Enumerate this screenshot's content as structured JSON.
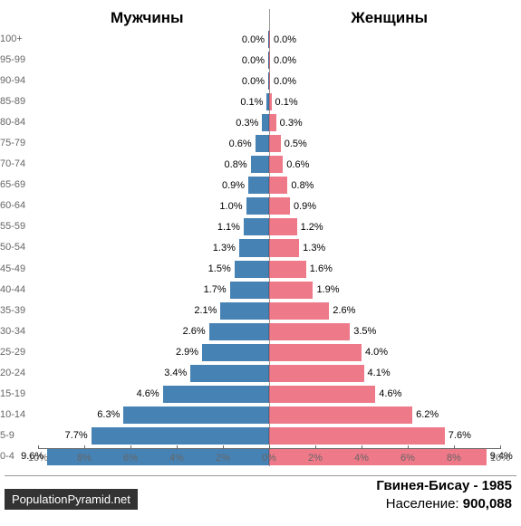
{
  "chart": {
    "type": "population-pyramid",
    "male_label": "Мужчины",
    "female_label": "Женщины",
    "male_color": "#4682b4",
    "female_color": "#ee7989",
    "background_color": "#ffffff",
    "axis_color": "#666666",
    "label_fontsize": 17,
    "age_label_fontsize": 11,
    "percent_fontsize": 11,
    "x_max_percent": 10,
    "x_ticks_left": [
      "10%",
      "8%",
      "6%",
      "4%",
      "2%",
      "0%"
    ],
    "x_ticks_right": [
      "2%",
      "4%",
      "6%",
      "8%",
      "10%"
    ],
    "age_groups": [
      {
        "label": "100+",
        "male": 0.0,
        "female": 0.0
      },
      {
        "label": "95-99",
        "male": 0.0,
        "female": 0.0
      },
      {
        "label": "90-94",
        "male": 0.0,
        "female": 0.0
      },
      {
        "label": "85-89",
        "male": 0.1,
        "female": 0.1
      },
      {
        "label": "80-84",
        "male": 0.3,
        "female": 0.3
      },
      {
        "label": "75-79",
        "male": 0.6,
        "female": 0.5
      },
      {
        "label": "70-74",
        "male": 0.8,
        "female": 0.6
      },
      {
        "label": "65-69",
        "male": 0.9,
        "female": 0.8
      },
      {
        "label": "60-64",
        "male": 1.0,
        "female": 0.9
      },
      {
        "label": "55-59",
        "male": 1.1,
        "female": 1.2
      },
      {
        "label": "50-54",
        "male": 1.3,
        "female": 1.3
      },
      {
        "label": "45-49",
        "male": 1.5,
        "female": 1.6
      },
      {
        "label": "40-44",
        "male": 1.7,
        "female": 1.9
      },
      {
        "label": "35-39",
        "male": 2.1,
        "female": 2.6
      },
      {
        "label": "30-34",
        "male": 2.6,
        "female": 3.5
      },
      {
        "label": "25-29",
        "male": 2.9,
        "female": 4.0
      },
      {
        "label": "20-24",
        "male": 3.4,
        "female": 4.1
      },
      {
        "label": "15-19",
        "male": 4.6,
        "female": 4.6
      },
      {
        "label": "10-14",
        "male": 6.3,
        "female": 6.2
      },
      {
        "label": "5-9",
        "male": 7.7,
        "female": 7.6
      },
      {
        "label": "0-4",
        "male": 9.6,
        "female": 9.4
      }
    ]
  },
  "footer": {
    "source_badge": "PopulationPyramid.net",
    "country_year": "Гвинея-Бисау - 1985",
    "population_label": "Население: ",
    "population_value": "900,088"
  }
}
